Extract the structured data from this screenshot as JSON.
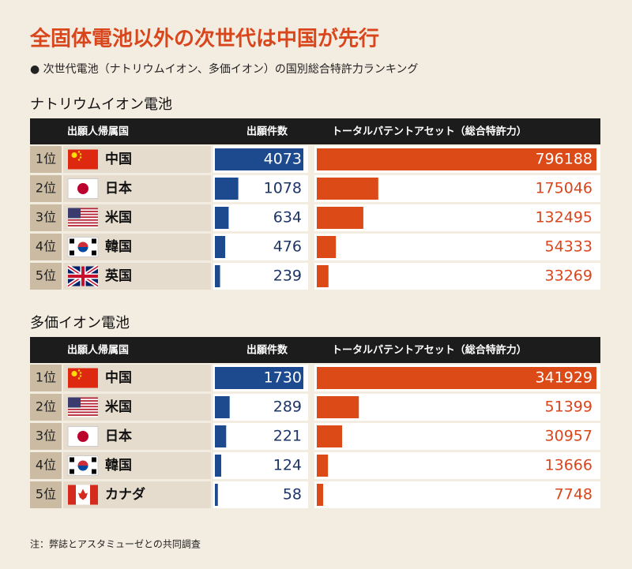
{
  "title": "全固体電池以外の次世代は中国が先行",
  "subtitle": "● 次世代電池（ナトリウムイオン、多価イオン）の国別総合特許力ランキング",
  "sections": [
    {
      "name": "ナトリウムイオン電池",
      "headers": [
        "出願人帰属国",
        "出願件数",
        "トータルパテントアセット（総合特許力）"
      ],
      "rows": [
        {
          "rank": "1位",
          "country": "中国",
          "applications": 4073,
          "assets": 796188
        },
        {
          "rank": "2位",
          "country": "日本",
          "applications": 1078,
          "assets": 175046
        },
        {
          "rank": "3位",
          "country": "米国",
          "applications": 634,
          "assets": 132495
        },
        {
          "rank": "4位",
          "country": "韓国",
          "applications": 476,
          "assets": 54333
        },
        {
          "rank": "5位",
          "country": "英国",
          "applications": 239,
          "assets": 33269
        }
      ]
    },
    {
      "name": "多価イオン電池",
      "headers": [
        "出願人帰属国",
        "出願件数",
        "トータルパテントアセット（総合特許力）"
      ],
      "rows": [
        {
          "rank": "1位",
          "country": "中国",
          "applications": 1730,
          "assets": 341929
        },
        {
          "rank": "2位",
          "country": "米国",
          "applications": 289,
          "assets": 51399
        },
        {
          "rank": "3位",
          "country": "日本",
          "applications": 221,
          "assets": 30957
        },
        {
          "rank": "4位",
          "country": "韓国",
          "applications": 124,
          "assets": 13666
        },
        {
          "rank": "5位",
          "country": "カナダ",
          "applications": 58,
          "assets": 7748
        }
      ]
    }
  ],
  "note": "注：弊誌とアスタミューゼとの共同調査"
}
